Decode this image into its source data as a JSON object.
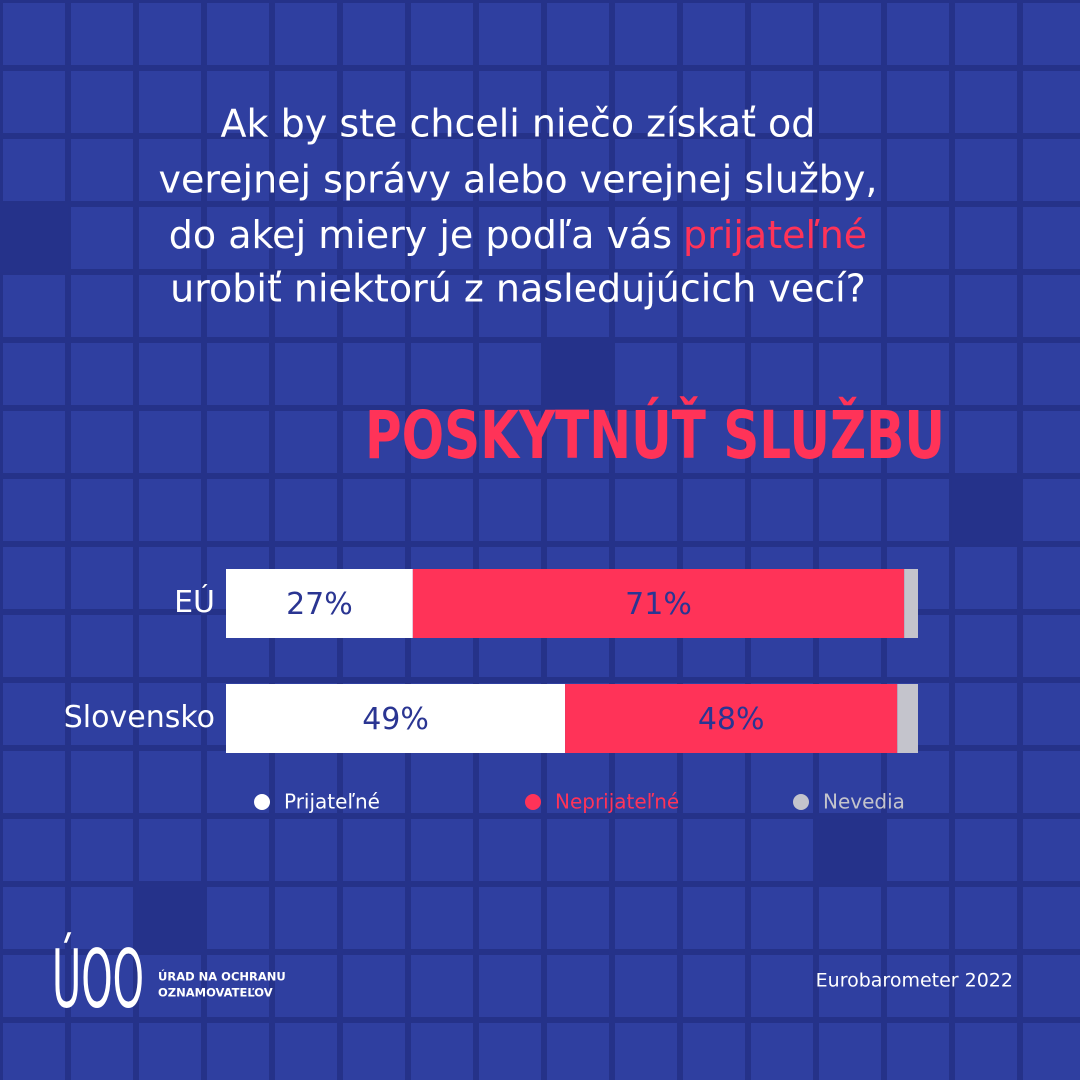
{
  "chart_data": {
    "type": "stacked-bar-horizontal",
    "title_lines": [
      "Ak by ste chceli niečo získať od",
      "verejnej správy alebo verejnej služby,",
      "do akej miery je podľa vás",
      "urobiť niektorú z nasledujúcich vecí?"
    ],
    "title_highlight": "prijateľné",
    "subtitle": "POSKYTNÚŤ SLUŽBU",
    "categories": [
      "EÚ",
      "Slovensko"
    ],
    "series": [
      {
        "name": "Prijateľné",
        "color": "#ffffff",
        "label_color": "#2a3592",
        "values": [
          27,
          49
        ],
        "value_labels": [
          "27%",
          "49%"
        ]
      },
      {
        "name": "Neprijateľné",
        "color": "#ff3358",
        "label_color": "#2a3592",
        "values": [
          71,
          48
        ],
        "value_labels": [
          "71%",
          "48%"
        ]
      },
      {
        "name": "Nevedia",
        "color": "#c4c4cc",
        "values": [
          2,
          3
        ]
      }
    ],
    "xlim": [
      0,
      100
    ],
    "logo": {
      "mark": "ÚOO",
      "line1": "ÚRAD NA OCHRANU",
      "line2": "OZNAMOVATEĽOV"
    },
    "source": "Eurobarometer 2022"
  }
}
